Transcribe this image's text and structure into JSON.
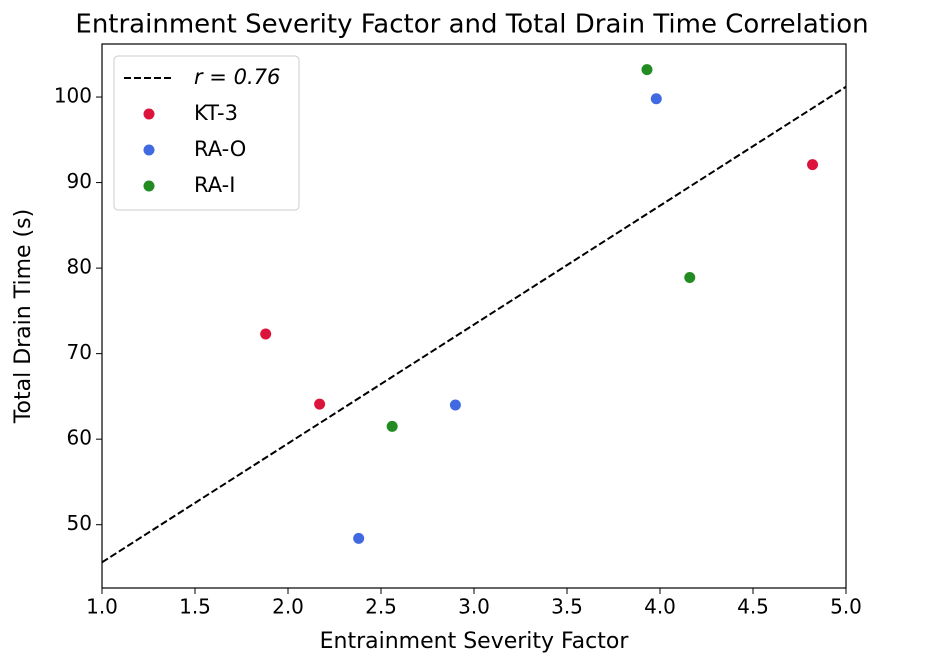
{
  "chart_data": {
    "type": "scatter",
    "title": "Entrainment Severity Factor and Total Drain Time Correlation",
    "x_label": "Entrainment Severity Factor",
    "y_label": "Total Drain Time (s)",
    "xlim": [
      1.0,
      5.0
    ],
    "ylim": [
      42.6,
      106.2
    ],
    "xticks": [
      {
        "value": 1.0,
        "label": "1.0"
      },
      {
        "value": 1.5,
        "label": "1.5"
      },
      {
        "value": 2.0,
        "label": "2.0"
      },
      {
        "value": 2.5,
        "label": "2.5"
      },
      {
        "value": 3.0,
        "label": "3.0"
      },
      {
        "value": 3.5,
        "label": "3.5"
      },
      {
        "value": 4.0,
        "label": "4.0"
      },
      {
        "value": 4.5,
        "label": "4.5"
      },
      {
        "value": 5.0,
        "label": "5.0"
      }
    ],
    "yticks": [
      50,
      60,
      70,
      80,
      90,
      100
    ],
    "legend": "upper left",
    "fit_line": {
      "name": "r = 0.76",
      "color": "#000000",
      "dashed": true,
      "x": [
        1.0,
        5.0
      ],
      "y": [
        45.6,
        101.2
      ]
    },
    "series": [
      {
        "name": "KT-3",
        "color": "#dc143c",
        "x": [
          1.88,
          2.17,
          4.82
        ],
        "y": [
          72.3,
          64.1,
          92.1
        ]
      },
      {
        "name": "RA-O",
        "color": "#4169e1",
        "x": [
          2.38,
          2.9,
          3.98
        ],
        "y": [
          48.4,
          64.0,
          99.8
        ]
      },
      {
        "name": "RA-I",
        "color": "#228b22",
        "x": [
          2.56,
          3.93,
          4.16
        ],
        "y": [
          61.5,
          103.2,
          78.9
        ]
      }
    ]
  }
}
